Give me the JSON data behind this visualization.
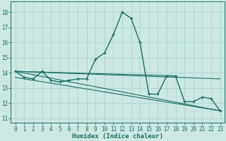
{
  "xlabel": "Humidex (Indice chaleur)",
  "background_color": "#cce8e3",
  "grid_color": "#aad4ce",
  "line_color": "#1a6e62",
  "xlim": [
    -0.5,
    23.5
  ],
  "ylim": [
    10.7,
    18.7
  ],
  "yticks": [
    11,
    12,
    13,
    14,
    15,
    16,
    17,
    18
  ],
  "xticks": [
    0,
    1,
    2,
    3,
    4,
    5,
    6,
    7,
    8,
    9,
    10,
    11,
    12,
    13,
    14,
    15,
    16,
    17,
    18,
    19,
    20,
    21,
    22,
    23
  ],
  "main_x": [
    0,
    1,
    2,
    3,
    4,
    5,
    6,
    7,
    8,
    9,
    10,
    11,
    12,
    13,
    14,
    15,
    16,
    17,
    18,
    19,
    20,
    21,
    22,
    23
  ],
  "main_y": [
    14.1,
    13.7,
    13.6,
    14.1,
    13.5,
    13.4,
    13.5,
    13.6,
    13.6,
    14.9,
    15.3,
    16.5,
    18.0,
    17.6,
    16.0,
    12.6,
    12.6,
    13.8,
    13.8,
    12.1,
    12.1,
    12.4,
    12.3,
    11.5
  ],
  "ref_lines": [
    {
      "x": [
        0,
        18
      ],
      "y": [
        14.1,
        13.8
      ]
    },
    {
      "x": [
        0,
        23
      ],
      "y": [
        14.1,
        13.6
      ]
    },
    {
      "x": [
        0,
        23
      ],
      "y": [
        14.1,
        11.5
      ]
    },
    {
      "x": [
        0,
        23
      ],
      "y": [
        13.7,
        11.5
      ]
    }
  ],
  "xlabel_fontsize": 6.5,
  "tick_fontsize": 5.5
}
